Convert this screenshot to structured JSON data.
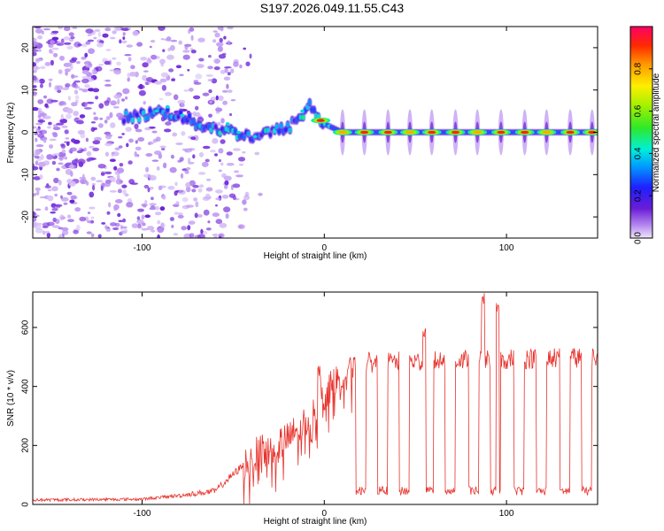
{
  "title": "S197.2026.049.11.55.C43",
  "chart_data": [
    {
      "type": "heatmap",
      "name": "spectrogram",
      "xlabel": "Height of straight line (km)",
      "ylabel": "Frequency (Hz)",
      "xlim": [
        -160,
        150
      ],
      "ylim": [
        -25,
        25
      ],
      "xticks": [
        -100,
        0,
        100
      ],
      "yticks": [
        -20,
        -10,
        0,
        10,
        20
      ],
      "colorbar": {
        "label": "Normalized spectral amplitude",
        "range": [
          0,
          1
        ],
        "ticks": [
          0.0,
          0.2,
          0.4,
          0.6,
          0.8
        ],
        "tick_labels": [
          "0.0",
          "0.2",
          "0.4",
          "0.6",
          "0.8"
        ]
      },
      "ridge": {
        "description": "dominant frequency trace",
        "x": [
          -160,
          -100,
          -90,
          -80,
          -70,
          -60,
          -50,
          -40,
          -30,
          -20,
          -10,
          -8,
          -5,
          0,
          10,
          150
        ],
        "y": [
          2,
          4,
          5,
          4,
          2,
          1,
          0,
          -1,
          0,
          1,
          5,
          7,
          4,
          2,
          0,
          0
        ]
      },
      "pulse_centers_km": [
        10,
        22,
        35,
        47,
        59,
        72,
        84,
        97,
        110,
        122,
        135,
        147
      ]
    },
    {
      "type": "line",
      "name": "snr",
      "xlabel": "Height of straight line (km)",
      "ylabel": "SNR (10 * v/v)",
      "xlim": [
        -160,
        150
      ],
      "ylim": [
        0,
        720
      ],
      "xticks": [
        -100,
        0,
        100
      ],
      "yticks": [
        0,
        200,
        400,
        600
      ],
      "color": "#e8322c",
      "baseline": {
        "x": [
          -160,
          -100,
          -80,
          -60,
          -45,
          -35,
          -20,
          -10,
          0,
          10,
          20,
          150
        ],
        "y": [
          15,
          18,
          30,
          45,
          130,
          180,
          220,
          280,
          370,
          440,
          480,
          500
        ]
      },
      "dip_centers_km": [
        20,
        32,
        44,
        57,
        69,
        82,
        94,
        107,
        119,
        132,
        144
      ],
      "dip_level": 40,
      "peak_events": [
        {
          "x": 87,
          "y": 720
        },
        {
          "x": 95,
          "y": 690
        },
        {
          "x": 55,
          "y": 600
        },
        {
          "x": -3,
          "y": 470
        }
      ]
    }
  ]
}
